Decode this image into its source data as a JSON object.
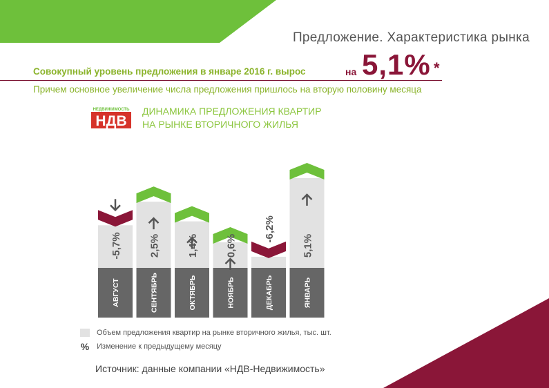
{
  "page": {
    "title": "Предложение. Характеристика рынка",
    "headline": "Совокупный уровень предложения в январе 2016 г. вырос",
    "growth_prefix": "на",
    "growth_value": "5,1%",
    "growth_star": "*",
    "subheadline": "Причем основное увеличение числа предложения пришлось на вторую половину месяца",
    "source": "Источник: данные компании «НДВ-Недвижимость»"
  },
  "logo": {
    "top": "НЕДВИЖИМОСТЬ",
    "main": "НДВ"
  },
  "colors": {
    "green": "#6ec03b",
    "maroon": "#8a1638",
    "bar": "#e2e2e2",
    "label_bg": "#666666",
    "accent_green": "#8bb42c"
  },
  "chart_data": {
    "type": "bar",
    "title": "ДИНАМИКА ПРЕДЛОЖЕНИЯ КВАРТИР\nНА РЫНКЕ ВТОРИЧНОГО ЖИЛЬЯ",
    "title_lines": [
      "ДИНАМИКА ПРЕДЛОЖЕНИЯ КВАРТИР",
      "НА РЫНКЕ ВТОРИЧНОГО ЖИЛЬЯ"
    ],
    "categories": [
      "АВГУСТ",
      "СЕНТЯБРЬ",
      "ОКТЯБРЬ",
      "НОЯБРЬ",
      "ДЕКАБРЬ",
      "ЯНВАРЬ"
    ],
    "values": [
      -5.7,
      2.5,
      1.4,
      0.6,
      -6.2,
      5.1
    ],
    "value_labels": [
      "-5,7%",
      "2,5%",
      "1,4%",
      "0,6%",
      "-6,2%",
      "5,1%"
    ],
    "directions": [
      "down",
      "up",
      "up",
      "up",
      "down",
      "up"
    ],
    "relative_level": [
      82,
      100,
      85,
      69,
      58,
      118
    ],
    "legend": [
      {
        "symbol": "box",
        "label": "Объем предложения квартир на рынке вторичного жилья, тыс. шт."
      },
      {
        "symbol": "%",
        "label": "Изменение к предыдущему месяцу"
      }
    ]
  }
}
